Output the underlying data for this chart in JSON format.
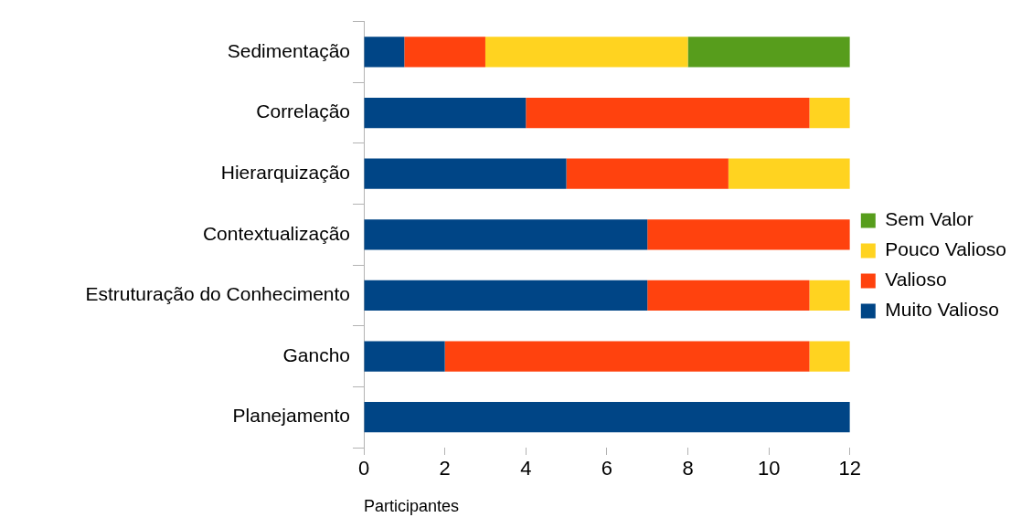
{
  "chart_data": {
    "type": "bar",
    "orientation": "horizontal",
    "stacked": true,
    "xlabel": "Participantes",
    "categories": [
      "Sedimentação",
      "Correlação",
      "Hierarquização",
      "Contextualização",
      "Estruturação do Conhecimento",
      "Gancho",
      "Planejamento"
    ],
    "series": [
      {
        "name": "Muito Valioso",
        "color": "#004586",
        "values": [
          1,
          4,
          5,
          7,
          7,
          2,
          12
        ]
      },
      {
        "name": "Valioso",
        "color": "#ff420e",
        "values": [
          2,
          7,
          4,
          5,
          4,
          9,
          0
        ]
      },
      {
        "name": "Pouco Valioso",
        "color": "#ffd320",
        "values": [
          5,
          1,
          3,
          0,
          1,
          1,
          0
        ]
      },
      {
        "name": "Sem Valor",
        "color": "#579d1c",
        "values": [
          4,
          0,
          0,
          0,
          0,
          0,
          0
        ]
      }
    ],
    "xlim": [
      0,
      12
    ],
    "xticks": [
      0,
      2,
      4,
      6,
      8,
      10,
      12
    ],
    "grid": false,
    "legend": "right"
  }
}
